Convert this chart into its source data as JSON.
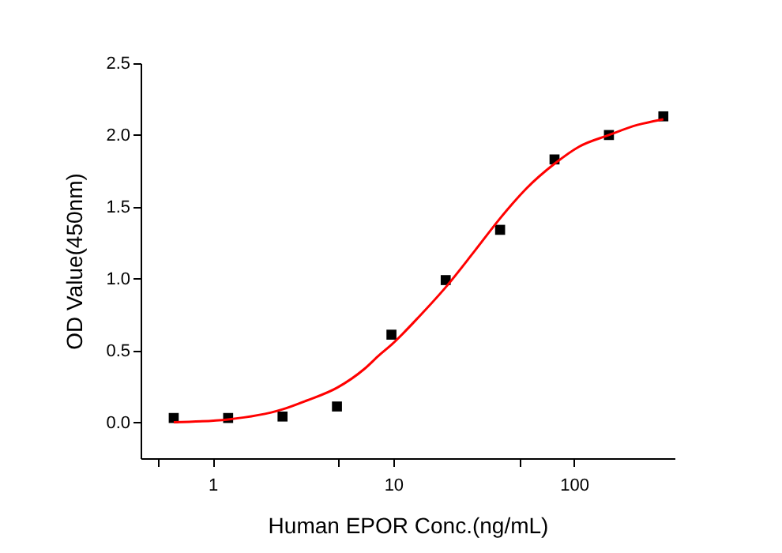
{
  "chart_data": {
    "type": "scatter",
    "xlabel": "Human EPOR Conc.(ng/mL)",
    "ylabel": "OD Value(450nm)",
    "log": "x",
    "xlim": [
      0.4,
      360
    ],
    "ylim": [
      -0.25,
      2.5
    ],
    "xticks": [
      {
        "value": 0.5,
        "label": null
      },
      1,
      {
        "value": 5,
        "label": null
      },
      10,
      {
        "value": 50,
        "label": null
      },
      100
    ],
    "yticks": [
      {
        "value": 0,
        "label": "0.0"
      },
      {
        "value": 0.5,
        "label": "0.5"
      },
      {
        "value": 1,
        "label": "1.0"
      },
      {
        "value": 1.5,
        "label": "1.5"
      },
      {
        "value": 2,
        "label": "2.0"
      },
      {
        "value": 2.5,
        "label": "2.5"
      }
    ],
    "grid": false,
    "series": [
      {
        "color": "#000000",
        "marker": "square",
        "x": [
          0.61,
          1.22,
          2.44,
          4.88,
          9.77,
          19.5,
          39,
          78,
          156,
          312
        ],
        "values": [
          0.03,
          0.03,
          0.04,
          0.11,
          0.61,
          0.99,
          1.34,
          1.83,
          2.0,
          2.13
        ]
      },
      {
        "type": "line",
        "color": "#ff0000",
        "marker": "none",
        "x": [
          0.61,
          1.22,
          2.44,
          3.3,
          4.88,
          6.9,
          8.4,
          9.77,
          14,
          19.5,
          28.1,
          39,
          54.7,
          78,
          107,
          156,
          224,
          312
        ],
        "values": [
          0.0,
          0.02,
          0.09,
          0.15,
          0.24,
          0.37,
          0.47,
          0.54,
          0.74,
          0.94,
          1.19,
          1.42,
          1.63,
          1.8,
          1.92,
          2.0,
          2.07,
          2.11
        ]
      }
    ]
  }
}
